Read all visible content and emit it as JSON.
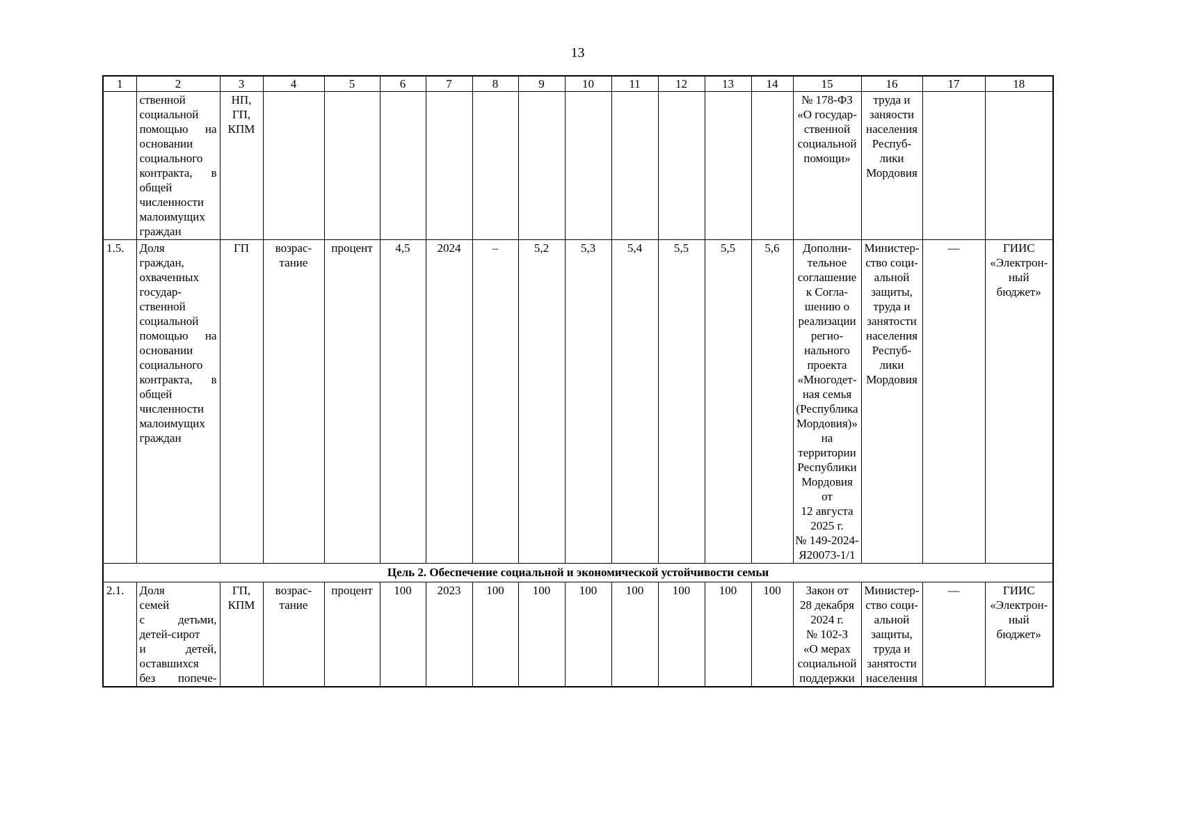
{
  "page": {
    "number": "13"
  },
  "table": {
    "column_headers": [
      "1",
      "2",
      "3",
      "4",
      "5",
      "6",
      "7",
      "8",
      "9",
      "10",
      "11",
      "12",
      "13",
      "14",
      "15",
      "16",
      "17",
      "18"
    ],
    "rows": [
      {
        "type": "data",
        "name": "row-1-4-continuation",
        "cells": [
          "",
          "ственной\nсоциальной\nпомощью на\nосновании\nсоциального\nконтракта, в\nобщей\nчисленности\nмалоимущих\nграждан",
          "НП,\nГП,\nКПМ",
          "",
          "",
          "",
          "",
          "",
          "",
          "",
          "",
          "",
          "",
          "",
          "№ 178-ФЗ\n«О государ-\nственной\nсоциальной\nпомощи»",
          "труда и\nзаняости\nнаселения\nРеспуб-\nлики\nМордовия",
          "",
          ""
        ]
      },
      {
        "type": "data",
        "name": "row-1-5",
        "cells": [
          "1.5.",
          "Доля\nграждан,\nохваченных\nгосудар-\nственной\nсоциальной\nпомощью на\nосновании\nсоциального\nконтракта, в\nобщей\nчисленности\nмалоимущих\nграждан",
          "ГП",
          "возрас-\nтание",
          "процент",
          "4,5",
          "2024",
          "–",
          "5,2",
          "5,3",
          "5,4",
          "5,5",
          "5,5",
          "5,6",
          "Дополни-\nтельное\nсоглашение\nк Согла-\nшению о\nреализации\nрегио-\nнального\nпроекта\n«Многодет-\nная семья\n(Республика\nМордовия)»\nна\nтерритории\nРеспублики\nМордовия\nот\n12 августа\n2025 г.\n№ 149-2024-\nЯ20073-1/1",
          "Министер-\nство соци-\nальной\nзащиты,\nтруда и\nзанятости\nнаселения\nРеспуб-\nлики\nМордовия",
          "—",
          "ГИИС\n«Электрон-\nный\nбюджет»"
        ]
      },
      {
        "type": "section",
        "name": "goal-2-section-row",
        "label": "Цель 2. Обеспечение социальной и экономической устойчивости семьи"
      },
      {
        "type": "data",
        "name": "row-2-1",
        "cells": [
          "2.1.",
          "Доля\nсемей\nс детьми,\nдетей-сирот\nи детей,\nоставшихся\nбез попече-",
          "ГП,\nКПМ",
          "возрас-\nтание",
          "процент",
          "100",
          "2023",
          "100",
          "100",
          "100",
          "100",
          "100",
          "100",
          "100",
          "Закон от\n28 декабря\n2024 г.\n№ 102-З\n«О мерах\nсоциальной\nподдержки",
          "Министер-\nство соци-\nальной\nзащиты,\nтруда и\nзанятости\nнаселения",
          "—",
          "ГИИС\n«Электрон-\nный\nбюджет»"
        ]
      }
    ]
  }
}
